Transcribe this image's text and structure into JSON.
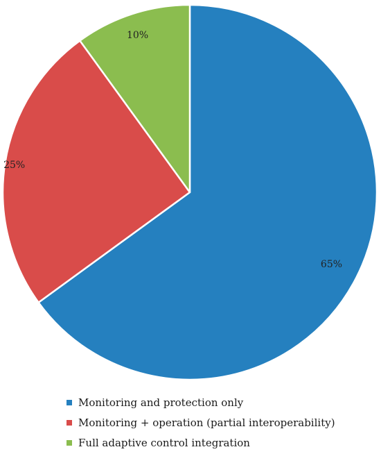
{
  "chart_data": {
    "type": "pie",
    "title": "",
    "categories": [
      "Monitoring and protection only",
      "Monitoring + operation (partial interoperability)",
      "Full adaptive control integration"
    ],
    "values": [
      65,
      25,
      10
    ],
    "labels": [
      "65%",
      "25%",
      "10%"
    ],
    "colors": [
      "#2580bf",
      "#d94c4a",
      "#8bbd4f"
    ],
    "legend": "bottom-left",
    "grid": false
  }
}
